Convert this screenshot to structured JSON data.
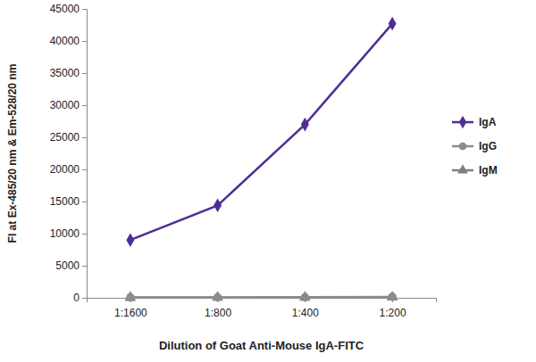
{
  "chart_data": {
    "type": "line",
    "x_label": "Dilution of Goat Anti-Mouse IgA-FITC",
    "y_label": "FI at Ex-485/20 nm & Em-528/20 nm",
    "categories": [
      "1:1600",
      "1:800",
      "1:400",
      "1:200"
    ],
    "series": [
      {
        "name": "IgA",
        "color": "#4f2d96",
        "marker": "diamond",
        "values": [
          9000,
          14400,
          27000,
          42700
        ]
      },
      {
        "name": "IgG",
        "color": "#8c8c8c",
        "marker": "circle",
        "values": [
          60,
          70,
          90,
          150
        ]
      },
      {
        "name": "IgM",
        "color": "#7f7f7f",
        "marker": "triangle",
        "values": [
          40,
          50,
          60,
          100
        ]
      }
    ],
    "ylim": [
      0,
      45000
    ],
    "yticks": [
      0,
      5000,
      10000,
      15000,
      20000,
      25000,
      30000,
      35000,
      40000,
      45000
    ],
    "grid": false,
    "legend": "right"
  }
}
